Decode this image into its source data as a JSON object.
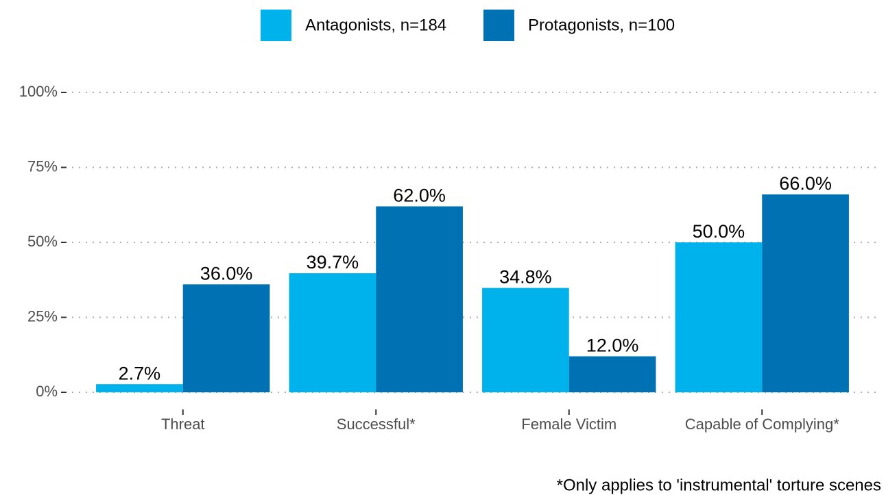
{
  "chart_data": {
    "type": "bar",
    "categories": [
      "Threat",
      "Successful*",
      "Female Victim",
      "Capable of Complying*"
    ],
    "series": [
      {
        "name": "Antagonists, n=184",
        "color": "#00b2ec",
        "values": [
          2.7,
          39.7,
          34.8,
          50.0
        ],
        "value_labels": [
          "2.7%",
          "39.7%",
          "34.8%",
          "50.0%"
        ]
      },
      {
        "name": "Protagonists, n=100",
        "color": "#0071b3",
        "values": [
          36.0,
          62.0,
          12.0,
          66.0
        ],
        "value_labels": [
          "36.0%",
          "62.0%",
          "12.0%",
          "66.0%"
        ]
      }
    ],
    "ylim": [
      0,
      100
    ],
    "yticks": [
      {
        "value": 0,
        "label": "0%"
      },
      {
        "value": 25,
        "label": "25%"
      },
      {
        "value": 50,
        "label": "50%"
      },
      {
        "value": 75,
        "label": "75%"
      },
      {
        "value": 100,
        "label": "100%"
      }
    ],
    "grid": true,
    "legend": "top",
    "caption": "*Only applies to 'instrumental' torture scenes"
  }
}
